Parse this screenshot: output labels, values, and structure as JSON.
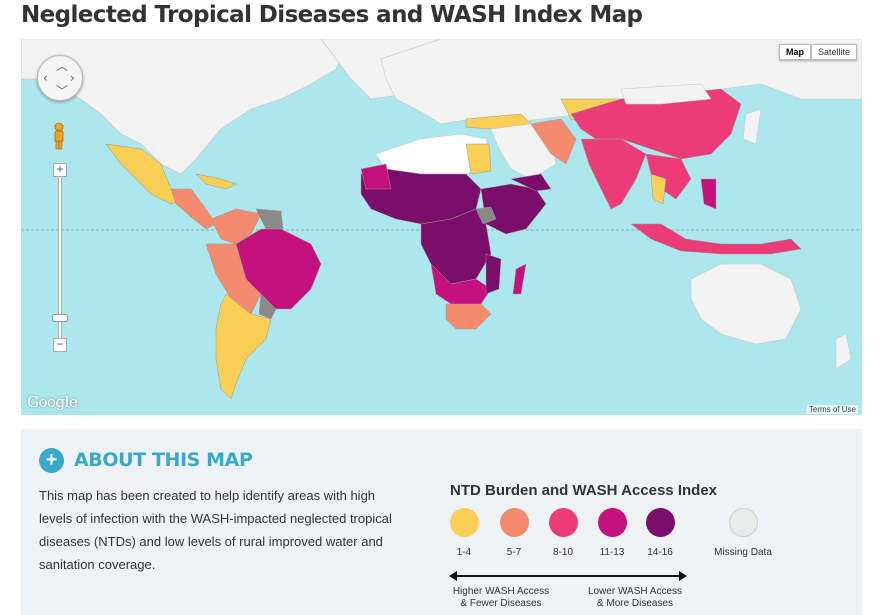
{
  "page": {
    "title": "Neglected Tropical Diseases and WASH Index Map"
  },
  "map": {
    "map_type_options": [
      "Map",
      "Satellite"
    ],
    "selected_map_type": "Map",
    "provider_logo": "Google",
    "terms_link": "Terms of Use",
    "controls": {
      "pan": "pan-control-icon",
      "street_view": "pegman-icon",
      "zoom_in": "+",
      "zoom_out": "−"
    },
    "colors": {
      "water": "#abe7ec",
      "land_default": "#f2f2f2",
      "no_data_region": "#ffffff",
      "missing": "#8a8a8a"
    }
  },
  "about": {
    "heading": "ABOUT THIS MAP",
    "icon": "plus-icon",
    "text": "This map has been created to help identify areas with high levels of infection with the WASH-impacted neglected tropical diseases (NTDs) and low levels of rural improved water and sanitation coverage."
  },
  "legend": {
    "title": "NTD Burden and WASH Access Index",
    "categories": [
      {
        "label": "1-4",
        "color": "#f9cf56"
      },
      {
        "label": "5-7",
        "color": "#f58a6e"
      },
      {
        "label": "8-10",
        "color": "#ec3c78"
      },
      {
        "label": "11-13",
        "color": "#c5117d"
      },
      {
        "label": "14-16",
        "color": "#7a0e6a"
      },
      {
        "label": "Missing Data",
        "color": "#e9ebea"
      }
    ],
    "scale_left_label": [
      "Higher WASH Access",
      "& Fewer Diseases"
    ],
    "scale_right_label": [
      "Lower WASH Access",
      "& More Diseases"
    ]
  }
}
